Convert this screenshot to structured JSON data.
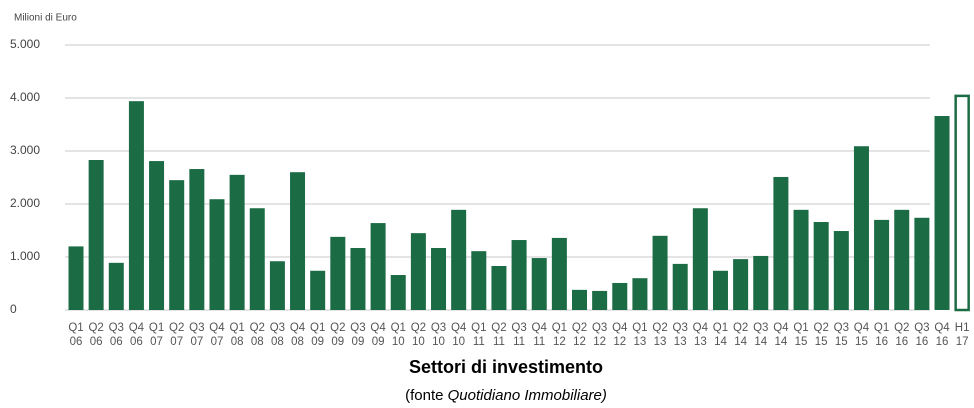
{
  "chart_data": {
    "type": "bar",
    "y_axis_label": "Milioni di Euro",
    "title": "Settori di investimento",
    "source_prefix": "(fonte ",
    "source_name": "Quotidiano Immobiliare)",
    "categories": [
      [
        "Q1",
        "06"
      ],
      [
        "Q2",
        "06"
      ],
      [
        "Q3",
        "06"
      ],
      [
        "Q4",
        "06"
      ],
      [
        "Q1",
        "07"
      ],
      [
        "Q2",
        "07"
      ],
      [
        "Q3",
        "07"
      ],
      [
        "Q4",
        "07"
      ],
      [
        "Q1",
        "08"
      ],
      [
        "Q2",
        "08"
      ],
      [
        "Q3",
        "08"
      ],
      [
        "Q4",
        "08"
      ],
      [
        "Q1",
        "09"
      ],
      [
        "Q2",
        "09"
      ],
      [
        "Q3",
        "09"
      ],
      [
        "Q4",
        "09"
      ],
      [
        "Q1",
        "10"
      ],
      [
        "Q2",
        "10"
      ],
      [
        "Q3",
        "10"
      ],
      [
        "Q4",
        "10"
      ],
      [
        "Q1",
        "11"
      ],
      [
        "Q2",
        "11"
      ],
      [
        "Q3",
        "11"
      ],
      [
        "Q4",
        "11"
      ],
      [
        "Q1",
        "12"
      ],
      [
        "Q2",
        "12"
      ],
      [
        "Q3",
        "12"
      ],
      [
        "Q4",
        "12"
      ],
      [
        "Q1",
        "13"
      ],
      [
        "Q2",
        "13"
      ],
      [
        "Q3",
        "13"
      ],
      [
        "Q4",
        "13"
      ],
      [
        "Q1",
        "14"
      ],
      [
        "Q2",
        "14"
      ],
      [
        "Q3",
        "14"
      ],
      [
        "Q4",
        "14"
      ],
      [
        "Q1",
        "15"
      ],
      [
        "Q2",
        "15"
      ],
      [
        "Q3",
        "15"
      ],
      [
        "Q4",
        "15"
      ],
      [
        "Q1",
        "16"
      ],
      [
        "Q2",
        "16"
      ],
      [
        "Q3",
        "16"
      ],
      [
        "Q4",
        "16"
      ],
      [
        "H1",
        "17"
      ]
    ],
    "values": [
      1200,
      2830,
      890,
      3940,
      2810,
      2450,
      2660,
      2090,
      2550,
      1920,
      920,
      2600,
      740,
      1380,
      1170,
      1640,
      660,
      1450,
      1170,
      1890,
      1110,
      830,
      1320,
      980,
      1360,
      380,
      360,
      510,
      600,
      1400,
      870,
      1920,
      740,
      960,
      1020,
      2510,
      1890,
      1660,
      1490,
      3090,
      1700,
      1890,
      1740,
      3660,
      4040
    ],
    "color": "#1b6b45",
    "outline_last": true,
    "ylim": [
      0,
      5000
    ],
    "yticks": [
      0,
      {
        "value": 1000,
        "label": "1.000"
      },
      {
        "value": 2000,
        "label": "2.000"
      },
      {
        "value": 3000,
        "label": "3.000"
      },
      {
        "value": 4000,
        "label": "4.000"
      },
      {
        "value": 5000,
        "label": "5.000"
      }
    ],
    "grid": true
  }
}
